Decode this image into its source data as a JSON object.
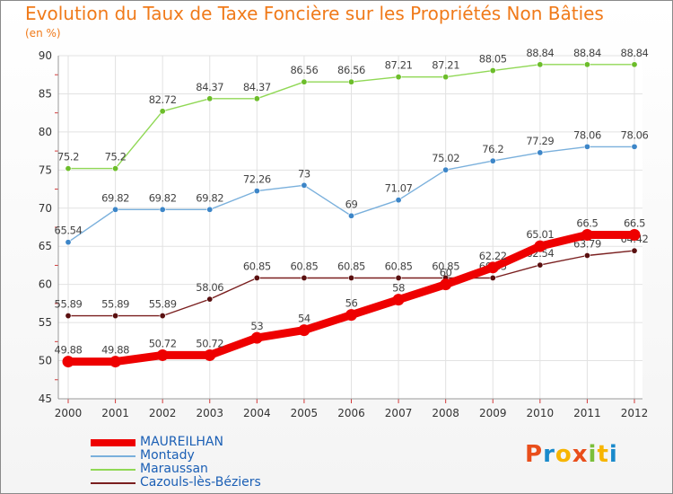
{
  "title": "Evolution du Taux de Taxe Foncière sur les Propriétés Non Bâties",
  "unit_label": "(en %)",
  "logo": {
    "letters": [
      "P",
      "r",
      "o",
      "x",
      "i",
      "t",
      "i"
    ],
    "colors": [
      "#e94e1b",
      "#1a8acb",
      "#f7b500",
      "#e94e1b",
      "#7bbf3a",
      "#f7b500",
      "#1a8acb"
    ]
  },
  "chart_data": {
    "type": "line",
    "title": "Evolution du Taux de Taxe Foncière sur les Propriétés Non Bâties",
    "xlabel": "",
    "ylabel": "(en %)",
    "ylim": [
      45,
      90
    ],
    "yticks": [
      45,
      50,
      55,
      60,
      65,
      70,
      75,
      80,
      85,
      90
    ],
    "grid": true,
    "legend_position": "bottom-left",
    "x": [
      "2000",
      "2001",
      "2002",
      "2003",
      "2004",
      "2005",
      "2006",
      "2007",
      "2008",
      "2009",
      "2010",
      "2011",
      "2012"
    ],
    "series": [
      {
        "name": "Cazouls-lès-Béziers",
        "color": "#7a1f1f",
        "marker": "#5a1010",
        "values": [
          55.89,
          55.89,
          55.89,
          58.06,
          60.85,
          60.85,
          60.85,
          60.85,
          60.85,
          60.85,
          62.54,
          63.79,
          64.42
        ],
        "labels": [
          "55.89",
          "55.89",
          "55.89",
          "58.06",
          "60.85",
          "60.85",
          "60.85",
          "60.85",
          "60.85",
          "60.85",
          "62.54",
          "63.79",
          "64.42"
        ]
      },
      {
        "name": "Maraussan",
        "color": "#90d855",
        "marker": "#6cbd2a",
        "values": [
          75.2,
          75.2,
          82.72,
          84.37,
          84.37,
          86.56,
          86.56,
          87.21,
          87.21,
          88.05,
          88.84,
          88.84,
          88.84
        ],
        "labels": [
          "75.2",
          "75.2",
          "82.72",
          "84.37",
          "84.37",
          "86.56",
          "86.56",
          "87.21",
          "87.21",
          "88.05",
          "88.84",
          "88.84",
          "88.84"
        ]
      },
      {
        "name": "Montady",
        "color": "#7ab0dc",
        "marker": "#3d86c8",
        "values": [
          65.54,
          69.82,
          69.82,
          69.82,
          72.26,
          73,
          69,
          71.07,
          75.02,
          76.2,
          77.29,
          78.06,
          78.06
        ],
        "labels": [
          "65.54",
          "69.82",
          "69.82",
          "69.82",
          "72.26",
          "73",
          "69",
          "71.07",
          "75.02",
          "76.2",
          "77.29",
          "78.06",
          "78.06"
        ]
      },
      {
        "name": "MAUREILHAN",
        "color": "#ee0000",
        "marker": "#ee0000",
        "values": [
          49.88,
          49.88,
          50.72,
          50.72,
          53,
          54,
          56,
          58,
          60,
          62.22,
          65.01,
          66.5,
          66.5
        ],
        "labels": [
          "49.88",
          "49.88",
          "50.72",
          "50.72",
          "53",
          "54",
          "56",
          "58",
          "60",
          "62.22",
          "65.01",
          "66.5",
          "66.5"
        ]
      }
    ],
    "legend_order": [
      "MAUREILHAN",
      "Montady",
      "Maraussan",
      "Cazouls-lès-Béziers"
    ]
  }
}
